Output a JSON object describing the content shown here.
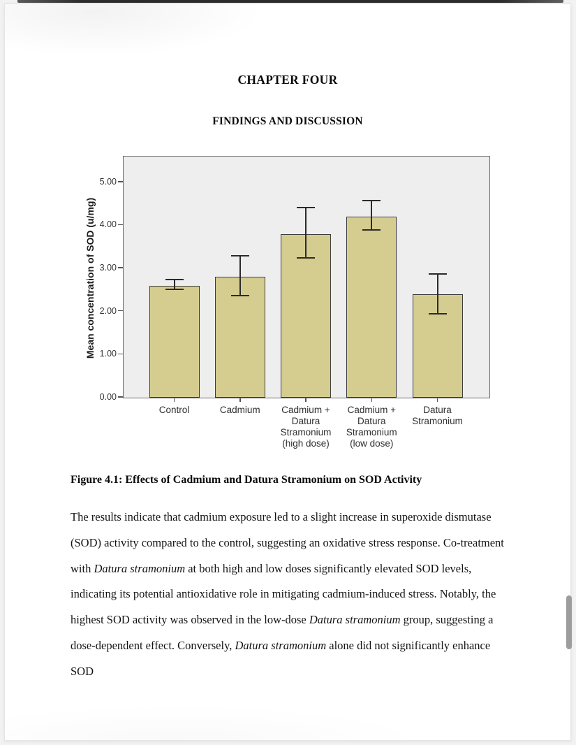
{
  "document": {
    "chapter_heading": "CHAPTER FOUR",
    "section_heading": "FINDINGS AND DISCUSSION",
    "figure_caption": "Figure 4.1: Effects of Cadmium and Datura Stramonium on SOD Activity",
    "paragraph": [
      {
        "text": "The results indicate that cadmium exposure led to a slight increase in superoxide dismutase (SOD) activity compared to the control, suggesting an oxidative stress response. Co-treatment with ",
        "italic": false
      },
      {
        "text": "Datura stramonium",
        "italic": true
      },
      {
        "text": " at both high and low doses significantly elevated SOD levels, indicating its potential antioxidative role in mitigating cadmium-induced stress. Notably, the highest SOD activity was observed in the low-dose ",
        "italic": false
      },
      {
        "text": "Datura stramonium",
        "italic": true
      },
      {
        "text": " group, suggesting a dose-dependent effect. Conversely, ",
        "italic": false
      },
      {
        "text": "Datura stramonium",
        "italic": true
      },
      {
        "text": " alone did not significantly enhance SOD",
        "italic": false
      }
    ]
  },
  "chart_data": {
    "type": "bar",
    "title": "",
    "xlabel": "",
    "ylabel": "Mean concentration of SOD (u/mg)",
    "categories": [
      "Control",
      "Cadmium",
      "Cadmium + Datura Stramonium (high dose)",
      "Cadmium + Datura Stramonium (low dose)",
      "Datura Stramonium"
    ],
    "category_lines": [
      [
        "Control"
      ],
      [
        "Cadmium"
      ],
      [
        "Cadmium +",
        "Datura",
        "Stramonium",
        "(high dose)"
      ],
      [
        "Cadmium +",
        "Datura",
        "Stramonium",
        "(low dose)"
      ],
      [
        "Datura",
        "Stramonium"
      ]
    ],
    "values": [
      2.6,
      2.8,
      3.8,
      4.2,
      2.4
    ],
    "error_low": [
      2.5,
      2.35,
      3.23,
      3.87,
      1.93
    ],
    "error_high": [
      2.73,
      3.27,
      4.4,
      4.56,
      2.86
    ],
    "ytick_values": [
      0,
      1,
      2,
      3,
      4,
      5
    ],
    "ytick_labels": [
      "0.00",
      "1.00",
      "2.00",
      "3.00",
      "4.00",
      "5.00"
    ],
    "ylim": [
      0,
      5.58
    ],
    "grid": false,
    "legend": "none",
    "colors": {
      "bar_fill": "#d5cd90",
      "bar_border": "#3c3c3c",
      "plot_bg": "#eeeeee",
      "frame_border": "#6a6a6a",
      "error_bar": "#2b2b2b",
      "tick_text": "#333333"
    }
  }
}
